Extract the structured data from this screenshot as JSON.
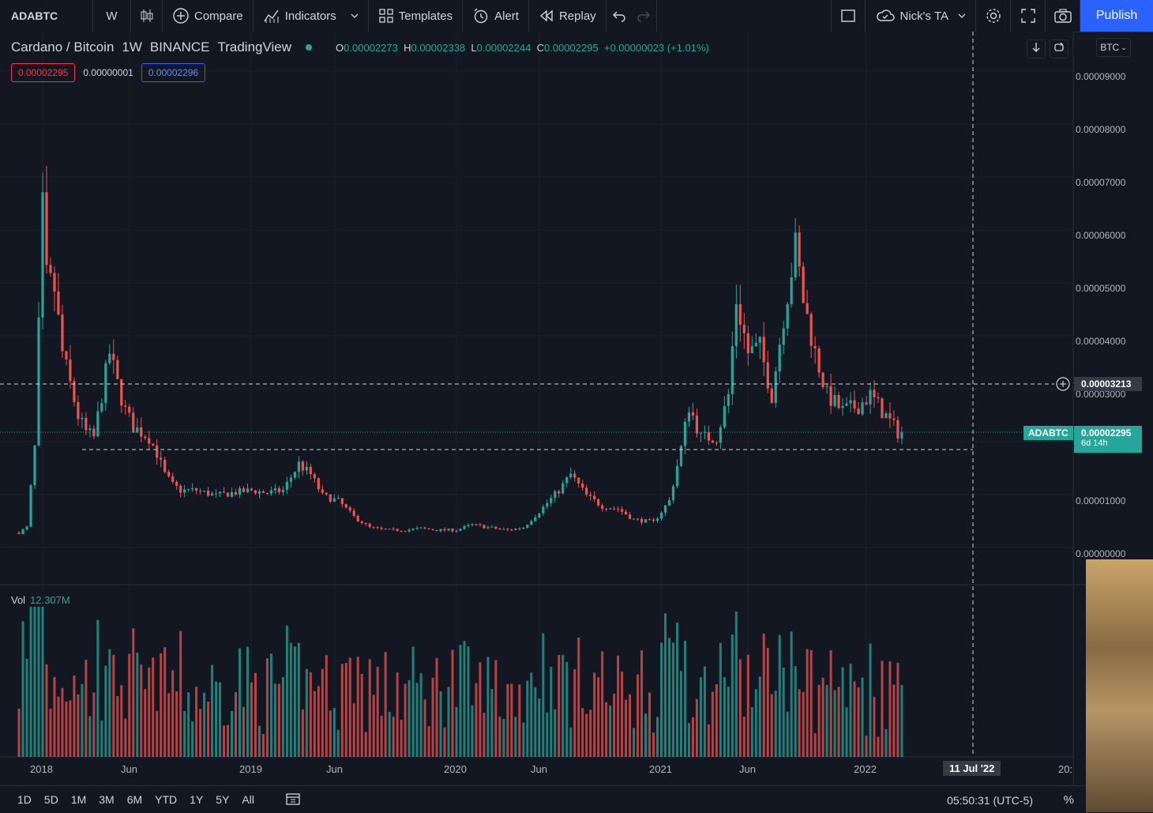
{
  "toolbar": {
    "symbol": "ADABTC",
    "interval": "W",
    "compare": "Compare",
    "indicators": "Indicators",
    "templates": "Templates",
    "alert": "Alert",
    "replay": "Replay",
    "layout_name": "Nick's TA",
    "publish": "Publish"
  },
  "legend": {
    "pair": "Cardano / Bitcoin",
    "interval": "1W",
    "exchange": "BINANCE",
    "source": "TradingView",
    "o_label": "O",
    "o": "0.00002273",
    "h_label": "H",
    "h": "0.00002338",
    "l_label": "L",
    "l": "0.00002244",
    "c_label": "C",
    "c": "0.00002295",
    "change": "+0.00000023 (+1.01%)",
    "bid": "0.00002295",
    "spread": "0.00000001",
    "ask": "0.00002296"
  },
  "price_scale": {
    "currency": "BTC",
    "labels": [
      "0.00009000",
      "0.00008000",
      "0.00007000",
      "0.00006000",
      "0.00005000",
      "0.00004000",
      "0.00003000",
      "0.00001000",
      "0.00000000"
    ],
    "crosshair_price": "0.00003213",
    "last_symbol": "ADABTC",
    "last_price": "0.00002295",
    "countdown": "6d 14h"
  },
  "time_scale": {
    "labels": [
      "2018",
      "Jun",
      "2019",
      "Jun",
      "2020",
      "Jun",
      "2021",
      "Jun",
      "2022"
    ],
    "crosshair_date": "11 Jul '22",
    "cut_label": "20:"
  },
  "volume": {
    "label": "Vol",
    "value": "12.307M"
  },
  "bottom": {
    "ranges": [
      "1D",
      "5D",
      "1M",
      "3M",
      "6M",
      "YTD",
      "1Y",
      "5Y",
      "All"
    ],
    "clock": "05:50:31 (UTC-5)",
    "pct": "%"
  },
  "colors": {
    "up": "#26a69a",
    "down": "#ef5350",
    "background": "#131722",
    "accent": "#2962ff"
  },
  "chart_data": {
    "type": "candlestick",
    "title": "Cardano / Bitcoin",
    "interval": "1W",
    "ylim": [
      0,
      9.5e-05
    ],
    "close_series": [
      [
        "2017-11-20",
        4e-06
      ],
      [
        "2017-12-04",
        5e-06
      ],
      [
        "2017-12-18",
        2e-05
      ],
      [
        "2018-01-01",
        6.5e-05
      ],
      [
        "2018-01-08",
        5.2e-05
      ],
      [
        "2018-01-22",
        5e-05
      ],
      [
        "2018-02-05",
        3.8e-05
      ],
      [
        "2018-02-19",
        3.2e-05
      ],
      [
        "2018-03-05",
        2.6e-05
      ],
      [
        "2018-03-19",
        2.3e-05
      ],
      [
        "2018-04-02",
        2.2e-05
      ],
      [
        "2018-04-16",
        3e-05
      ],
      [
        "2018-04-30",
        3.8e-05
      ],
      [
        "2018-05-14",
        3.2e-05
      ],
      [
        "2018-05-28",
        2.7e-05
      ],
      [
        "2018-06-11",
        2.4e-05
      ],
      [
        "2018-06-25",
        2.3e-05
      ],
      [
        "2018-07-09",
        2.2e-05
      ],
      [
        "2018-07-23",
        1.9e-05
      ],
      [
        "2018-08-06",
        1.5e-05
      ],
      [
        "2018-08-20",
        1.3e-05
      ],
      [
        "2018-09-03",
        1.2e-05
      ],
      [
        "2018-10-01",
        1.2e-05
      ],
      [
        "2018-11-05",
        1.1e-05
      ],
      [
        "2018-12-03",
        1.15e-05
      ],
      [
        "2019-01-07",
        1.2e-05
      ],
      [
        "2019-02-04",
        1.15e-05
      ],
      [
        "2019-03-04",
        1.2e-05
      ],
      [
        "2019-04-01",
        1.7e-05
      ],
      [
        "2019-04-22",
        1.5e-05
      ],
      [
        "2019-05-13",
        1.1e-05
      ],
      [
        "2019-06-10",
        1e-05
      ],
      [
        "2019-07-08",
        7e-06
      ],
      [
        "2019-08-05",
        5e-06
      ],
      [
        "2019-09-02",
        4.5e-06
      ],
      [
        "2019-10-07",
        4.5e-06
      ],
      [
        "2019-11-04",
        4.8e-06
      ],
      [
        "2019-12-02",
        4.5e-06
      ],
      [
        "2020-01-06",
        4.5e-06
      ],
      [
        "2020-02-03",
        5.5e-06
      ],
      [
        "2020-03-02",
        5e-06
      ],
      [
        "2020-04-06",
        4.5e-06
      ],
      [
        "2020-05-04",
        5e-06
      ],
      [
        "2020-06-01",
        8e-06
      ],
      [
        "2020-07-06",
        1.2e-05
      ],
      [
        "2020-07-27",
        1.5e-05
      ],
      [
        "2020-08-24",
        1.1e-05
      ],
      [
        "2020-09-21",
        9e-06
      ],
      [
        "2020-10-19",
        8.5e-06
      ],
      [
        "2020-11-16",
        6.5e-06
      ],
      [
        "2020-12-21",
        6e-06
      ],
      [
        "2021-01-18",
        1e-05
      ],
      [
        "2021-02-08",
        2e-05
      ],
      [
        "2021-02-22",
        2.8e-05
      ],
      [
        "2021-03-15",
        2.2e-05
      ],
      [
        "2021-04-12",
        2.2e-05
      ],
      [
        "2021-05-03",
        3e-05
      ],
      [
        "2021-05-17",
        4.8e-05
      ],
      [
        "2021-06-07",
        3.8e-05
      ],
      [
        "2021-06-28",
        3.9e-05
      ],
      [
        "2021-07-19",
        3e-05
      ],
      [
        "2021-08-09",
        4.5e-05
      ],
      [
        "2021-08-30",
        5.8e-05
      ],
      [
        "2021-09-13",
        4.8e-05
      ],
      [
        "2021-10-04",
        3.8e-05
      ],
      [
        "2021-10-25",
        3e-05
      ],
      [
        "2021-11-22",
        2.7e-05
      ],
      [
        "2021-12-20",
        2.8e-05
      ],
      [
        "2022-01-10",
        3e-05
      ],
      [
        "2022-02-07",
        2.6e-05
      ],
      [
        "2022-02-28",
        2.3e-05
      ],
      [
        "2022-03-07",
        2.29e-05
      ]
    ]
  }
}
